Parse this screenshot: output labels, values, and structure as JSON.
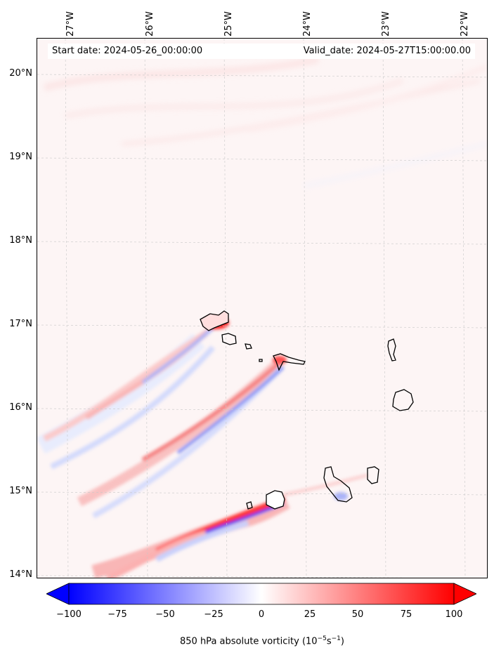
{
  "header": {
    "start_label": "Start date: 2024-05-26_00:00:00",
    "valid_label": "Valid_date: 2024-05-27T15:00:00.00"
  },
  "map": {
    "lon_labels": [
      "27°W",
      "26°W",
      "25°W",
      "24°W",
      "23°W",
      "22°W"
    ],
    "lat_labels": [
      "20°N",
      "19°N",
      "18°N",
      "17°N",
      "16°N",
      "15°N",
      "14°N"
    ],
    "extent": {
      "lon_min": -27.35,
      "lon_max": -21.75,
      "lat_min": 13.95,
      "lat_max": 20.4
    },
    "gridlines": true,
    "islands": [
      "Santo Antão",
      "São Vicente",
      "Santa Luzia",
      "São Nicolau",
      "Sal",
      "Boa Vista",
      "Santiago",
      "Maio",
      "Fogo",
      "Brava"
    ]
  },
  "colorbar": {
    "ticks": [
      "−100",
      "−75",
      "−50",
      "−25",
      "0",
      "25",
      "50",
      "75",
      "100"
    ],
    "label": "850 hPa absolute vorticity (10",
    "label_sup": "−5",
    "label_mid": "s",
    "label_sup2": "−1",
    "label_end": ")",
    "colors": {
      "min": "#0000ff",
      "mid": "#ffffff",
      "max": "#ff0000"
    }
  }
}
